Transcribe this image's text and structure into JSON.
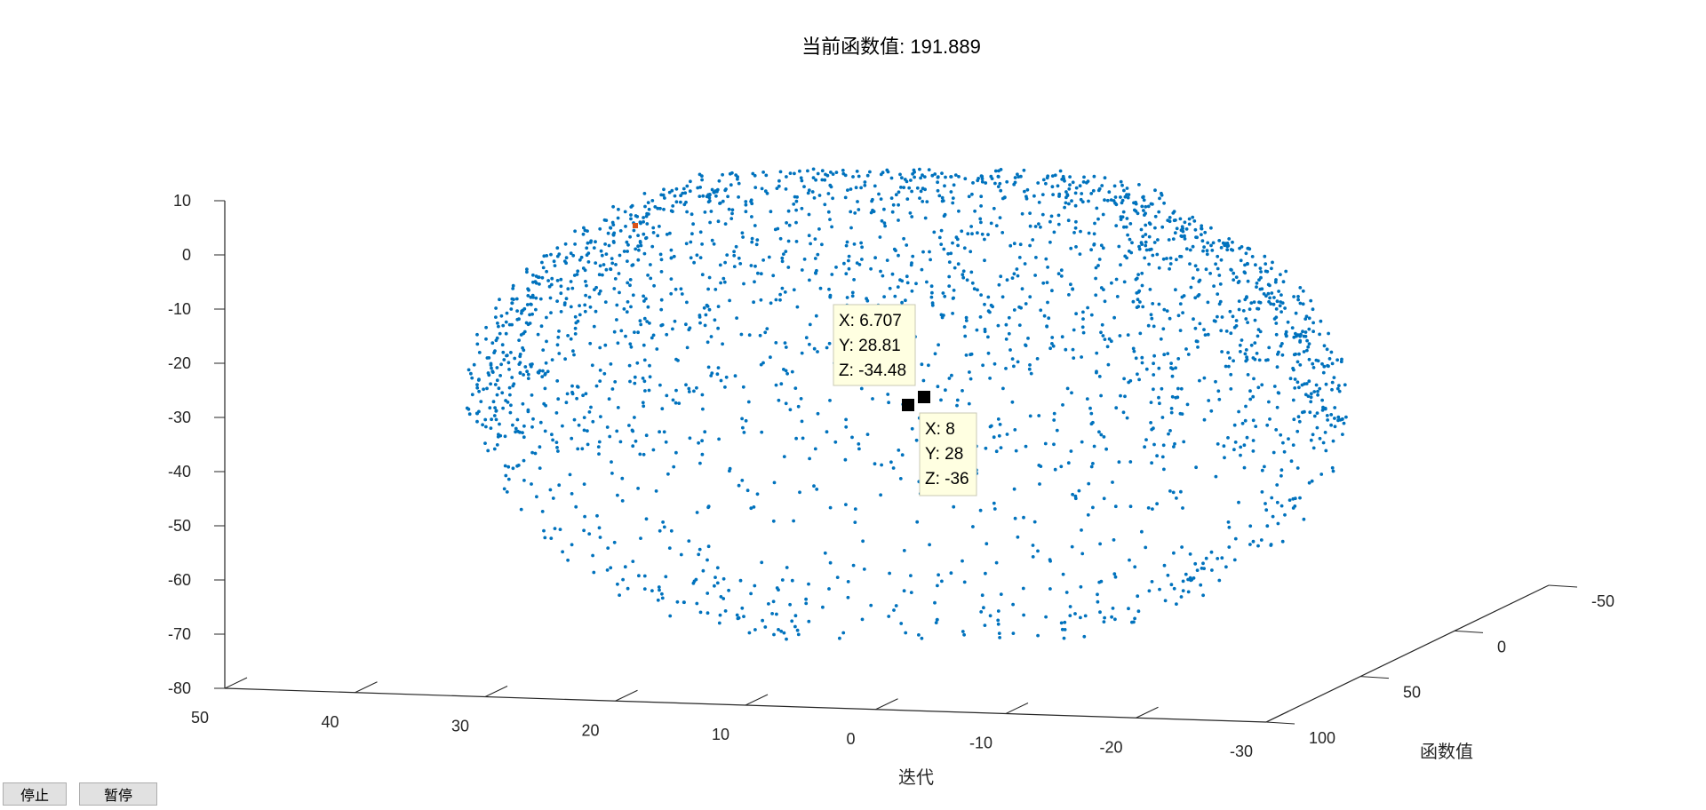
{
  "title": "当前函数值: 191.889",
  "buttons": {
    "stop_label": "停止",
    "pause_label": "暂停"
  },
  "chart_data": {
    "type": "scatter",
    "projection": "3d",
    "title": "当前函数值: 191.889",
    "xlabel": "迭代",
    "ylabel": "函数值",
    "zlabel": "",
    "xlim": [
      -30,
      50
    ],
    "ylim": [
      -50,
      100
    ],
    "zlim": [
      -80,
      10
    ],
    "x_ticks": [
      50,
      40,
      30,
      20,
      10,
      0,
      -10,
      -20,
      -30
    ],
    "y_ticks": [
      -50,
      0,
      50,
      100
    ],
    "z_ticks": [
      10,
      0,
      -10,
      -20,
      -30,
      -40,
      -50,
      -60,
      -70,
      -80
    ],
    "grid": false,
    "marker_color": "#0072BD",
    "highlight_color": "#D95319",
    "series": [
      {
        "marker": "point",
        "description_points": "ellipsoidal shell of points",
        "center": {
          "x": 8,
          "y": 28,
          "z": -36
        },
        "radii": {
          "x": 32,
          "y": 50,
          "z": 50
        },
        "count": 2400
      }
    ],
    "highlight_points": [
      {
        "x": 6.707,
        "y": 28.81,
        "z": -34.48
      },
      {
        "x": 8,
        "y": 28,
        "z": -36
      }
    ],
    "datatips": [
      {
        "x_label": "X: 6.707",
        "y_label": "Y: 28.81",
        "z_label": "Z: -34.48"
      },
      {
        "x_label": "X: 8",
        "y_label": "Y: 28",
        "z_label": "Z: -36"
      }
    ]
  }
}
